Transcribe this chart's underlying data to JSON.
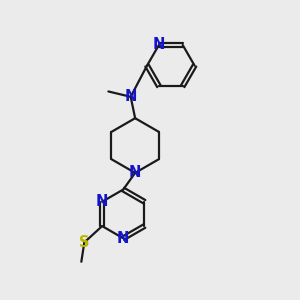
{
  "bg_color": "#ebebeb",
  "bond_color": "#1a1a1a",
  "n_color": "#1414cc",
  "s_color": "#b8b800",
  "line_width": 1.6,
  "font_size": 10.5,
  "fig_size": [
    3.0,
    3.0
  ],
  "dpi": 100,
  "xlim": [
    0,
    10
  ],
  "ylim": [
    0,
    10
  ]
}
